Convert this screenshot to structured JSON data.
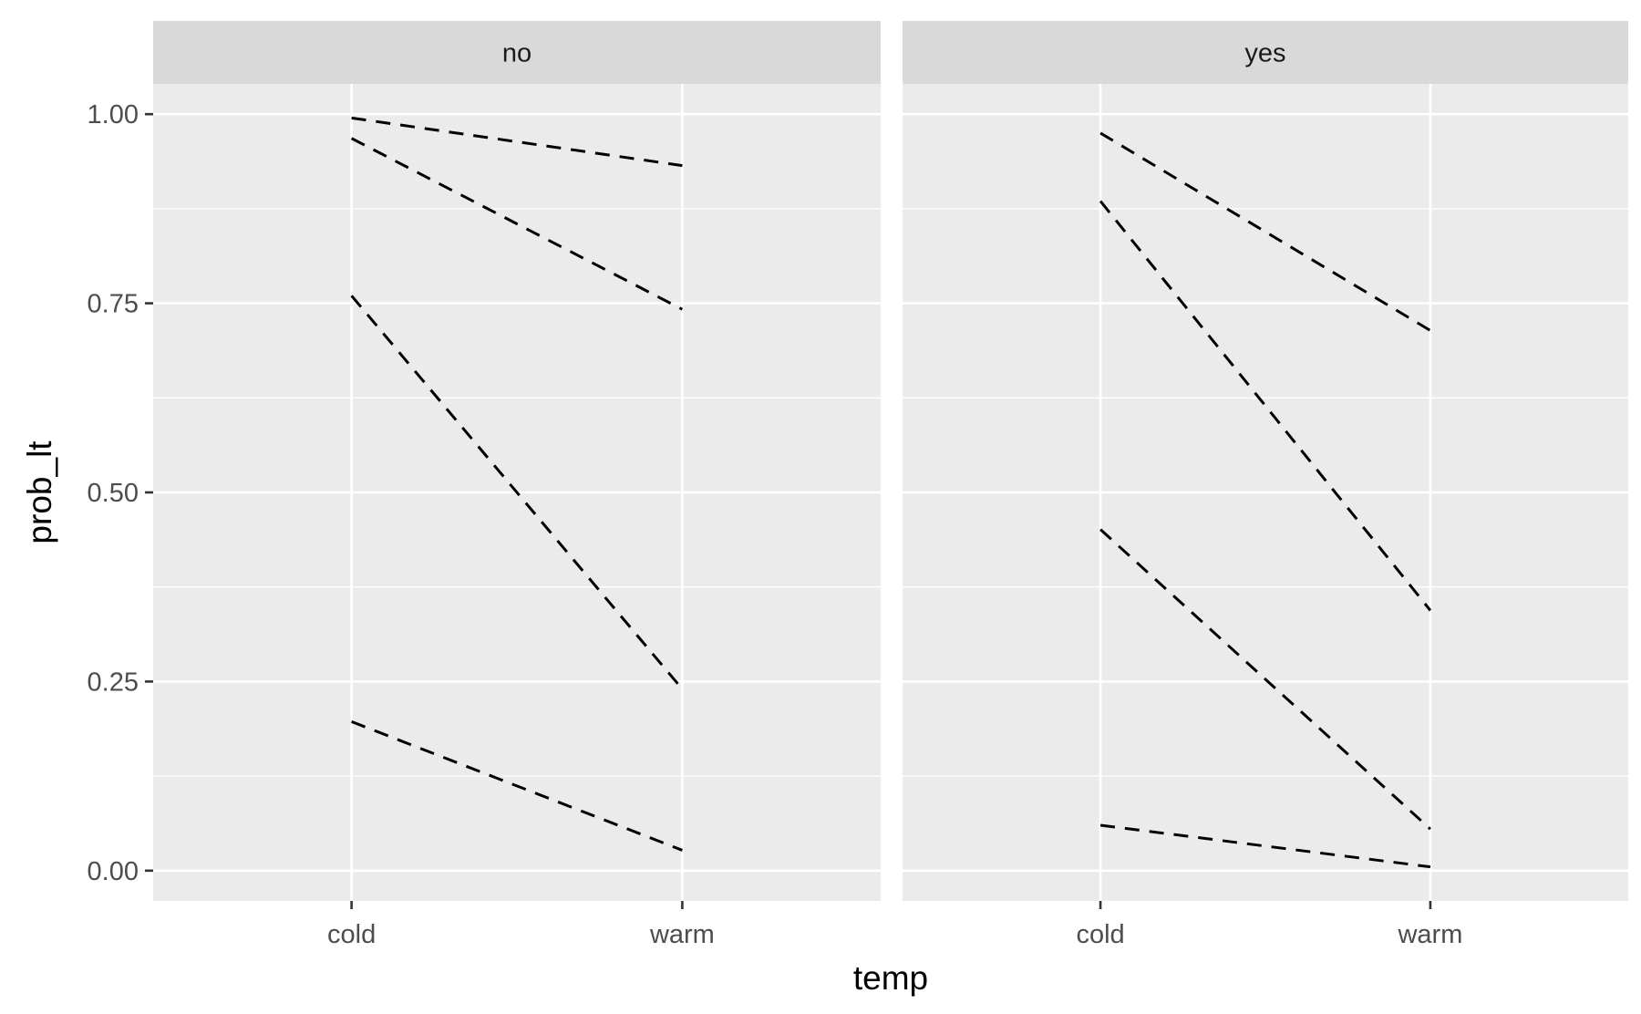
{
  "chart_data": {
    "type": "line",
    "xlabel": "temp",
    "ylabel": "prob_lt",
    "categories": [
      "cold",
      "warm"
    ],
    "ylim": [
      -0.04,
      1.04
    ],
    "y_ticks": [
      0,
      0.25,
      0.5,
      0.75,
      1
    ],
    "y_tick_labels": [
      "0.00",
      "0.25",
      "0.50",
      "0.75",
      "1.00"
    ],
    "y_minor_ticks": [
      0.125,
      0.375,
      0.625,
      0.875
    ],
    "grid": true,
    "line_style": "dashed",
    "line_color": "#000000",
    "facets": [
      {
        "label": "no",
        "series": [
          {
            "values": [
              0.995,
              0.932
            ]
          },
          {
            "values": [
              0.968,
              0.742
            ]
          },
          {
            "values": [
              0.76,
              0.24
            ]
          },
          {
            "values": [
              0.197,
              0.027
            ]
          }
        ]
      },
      {
        "label": "yes",
        "series": [
          {
            "values": [
              0.975,
              0.714
            ]
          },
          {
            "values": [
              0.885,
              0.344
            ]
          },
          {
            "values": [
              0.451,
              0.055
            ]
          },
          {
            "values": [
              0.06,
              0.005
            ]
          }
        ]
      }
    ]
  }
}
